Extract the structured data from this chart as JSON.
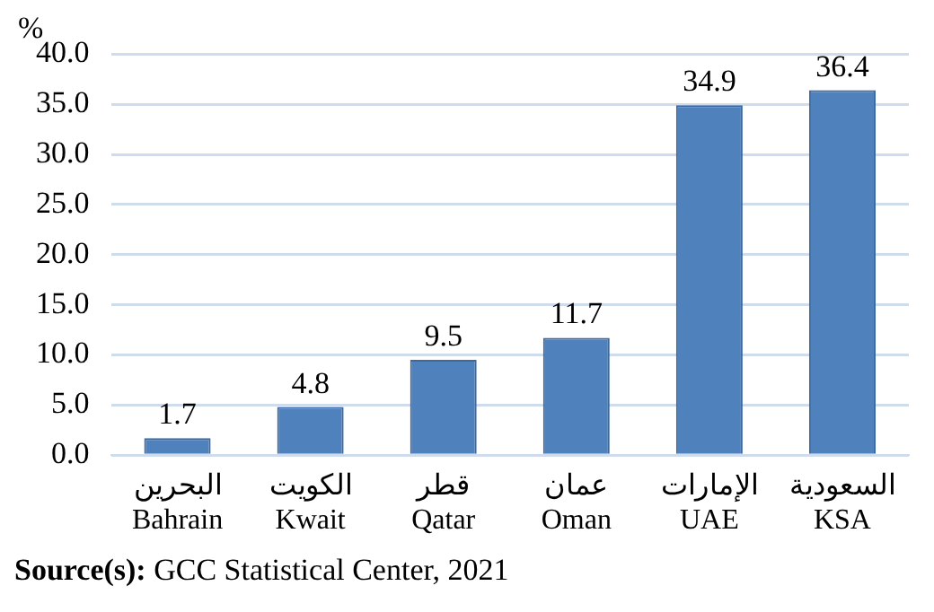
{
  "chart_data": {
    "type": "bar",
    "ylabel": "%",
    "categories": [
      "البحرين\nBahrain",
      "الكويت\nKwait",
      "قطر\nQatar",
      "عمان\nOman",
      "الإمارات\nUAE",
      "السعودية\nKSA"
    ],
    "values": [
      1.7,
      4.8,
      9.5,
      11.7,
      34.9,
      36.4
    ],
    "color": "#4f81bd",
    "ylim": [
      0,
      40
    ],
    "yticks": [
      {
        "value": 0,
        "label": "0.0"
      },
      {
        "value": 5,
        "label": "5.0"
      },
      {
        "value": 10,
        "label": "10.0"
      },
      {
        "value": 15,
        "label": "15.0"
      },
      {
        "value": 20,
        "label": "20.0"
      },
      {
        "value": 25,
        "label": "25.0"
      },
      {
        "value": 30,
        "label": "30.0"
      },
      {
        "value": 35,
        "label": "35.0"
      },
      {
        "value": 40,
        "label": "40.0"
      }
    ],
    "grid": "y",
    "legend": false,
    "data_labels": true,
    "annotations": [
      "Source(s): GCC Statistical Center, 2021"
    ]
  }
}
